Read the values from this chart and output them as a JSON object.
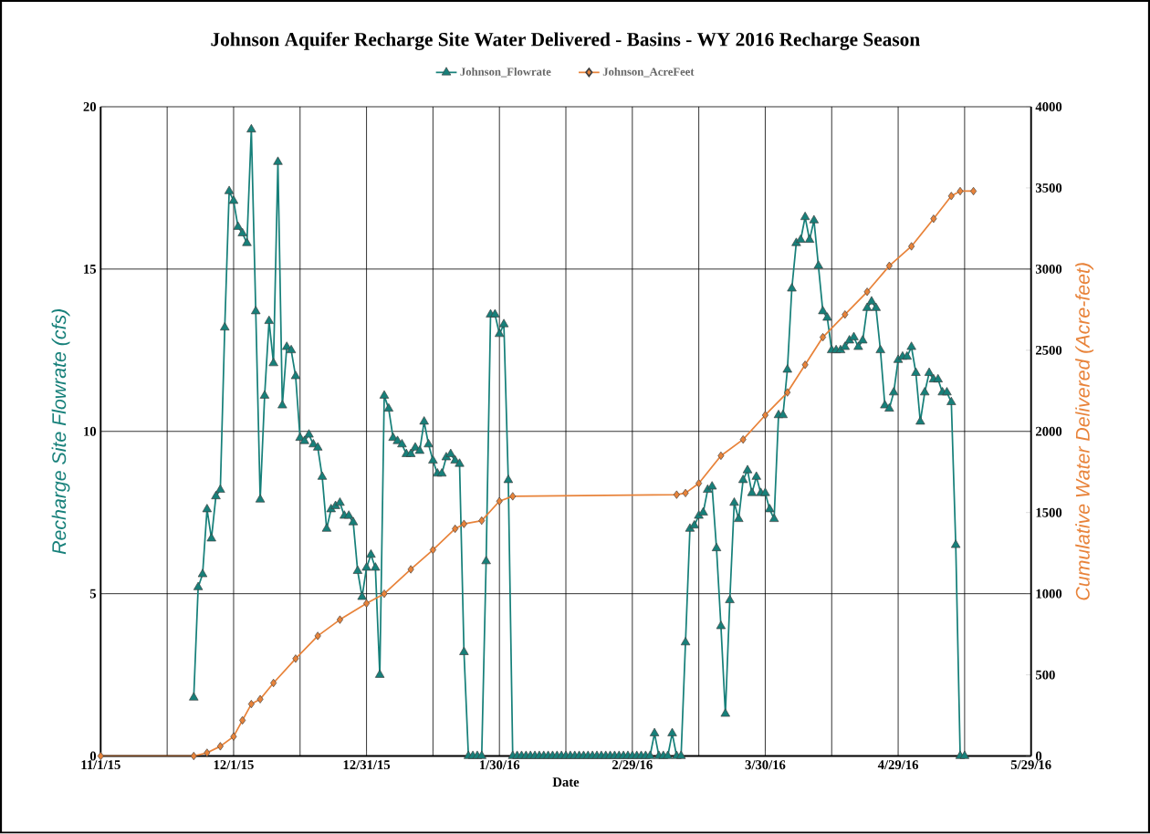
{
  "chart_data": {
    "type": "line",
    "title": "Johnson Aquifer Recharge Site Water Delivered - Basins - WY 2016 Recharge Season",
    "xlabel": "Date",
    "ylabel": "Recharge Site Flowrate (cfs)",
    "y2label": "Cumulative Water Delivered (Acre-feet)",
    "xlim": [
      "2015-11-01",
      "2016-05-29"
    ],
    "xticks": [
      {
        "value": "2015-11-01",
        "label": "11/1/15"
      },
      {
        "value": "2015-11-16",
        "label": null
      },
      {
        "value": "2015-12-01",
        "label": "12/1/15"
      },
      {
        "value": "2015-12-16",
        "label": null
      },
      {
        "value": "2015-12-31",
        "label": "12/31/15"
      },
      {
        "value": "2016-01-15",
        "label": null
      },
      {
        "value": "2016-01-30",
        "label": "1/30/16"
      },
      {
        "value": "2016-02-14",
        "label": null
      },
      {
        "value": "2016-02-29",
        "label": "2/29/16"
      },
      {
        "value": "2016-03-15",
        "label": null
      },
      {
        "value": "2016-03-30",
        "label": "3/30/16"
      },
      {
        "value": "2016-04-14",
        "label": null
      },
      {
        "value": "2016-04-29",
        "label": "4/29/16"
      },
      {
        "value": "2016-05-14",
        "label": null
      },
      {
        "value": "2016-05-29",
        "label": "5/29/16"
      }
    ],
    "ylim": [
      0,
      20
    ],
    "yticks": [
      0,
      5,
      10,
      15,
      20
    ],
    "y2lim": [
      0,
      4000
    ],
    "y2ticks": [
      0,
      500,
      1000,
      1500,
      2000,
      2500,
      3000,
      3500,
      4000
    ],
    "grid": true,
    "legend": "top",
    "series": [
      {
        "name": "Johnson_Flowrate",
        "color": "#17807a",
        "marker": "triangle",
        "x": [
          "2015-11-22",
          "2015-11-23",
          "2015-11-24",
          "2015-11-25",
          "2015-11-26",
          "2015-11-27",
          "2015-11-28",
          "2015-11-29",
          "2015-11-30",
          "2015-12-01",
          "2015-12-02",
          "2015-12-03",
          "2015-12-04",
          "2015-12-05",
          "2015-12-06",
          "2015-12-07",
          "2015-12-08",
          "2015-12-09",
          "2015-12-10",
          "2015-12-11",
          "2015-12-12",
          "2015-12-13",
          "2015-12-14",
          "2015-12-15",
          "2015-12-16",
          "2015-12-17",
          "2015-12-18",
          "2015-12-19",
          "2015-12-20",
          "2015-12-21",
          "2015-12-22",
          "2015-12-23",
          "2015-12-24",
          "2015-12-25",
          "2015-12-26",
          "2015-12-27",
          "2015-12-28",
          "2015-12-29",
          "2015-12-30",
          "2015-12-31",
          "2016-01-01",
          "2016-01-02",
          "2016-01-03",
          "2016-01-04",
          "2016-01-05",
          "2016-01-06",
          "2016-01-07",
          "2016-01-08",
          "2016-01-09",
          "2016-01-10",
          "2016-01-11",
          "2016-01-12",
          "2016-01-13",
          "2016-01-14",
          "2016-01-15",
          "2016-01-16",
          "2016-01-17",
          "2016-01-18",
          "2016-01-19",
          "2016-01-20",
          "2016-01-21",
          "2016-01-22",
          "2016-01-23",
          "2016-01-24",
          "2016-01-25",
          "2016-01-26",
          "2016-01-27",
          "2016-01-28",
          "2016-01-29",
          "2016-01-30",
          "2016-01-31",
          "2016-02-01",
          "2016-02-02",
          "2016-02-03",
          "2016-02-04",
          "2016-02-05",
          "2016-02-06",
          "2016-02-07",
          "2016-02-08",
          "2016-02-09",
          "2016-02-10",
          "2016-02-11",
          "2016-02-12",
          "2016-02-13",
          "2016-02-14",
          "2016-02-15",
          "2016-02-16",
          "2016-02-17",
          "2016-02-18",
          "2016-02-19",
          "2016-02-20",
          "2016-02-21",
          "2016-02-22",
          "2016-02-23",
          "2016-02-24",
          "2016-02-25",
          "2016-02-26",
          "2016-02-27",
          "2016-02-28",
          "2016-02-29",
          "2016-03-01",
          "2016-03-02",
          "2016-03-03",
          "2016-03-04",
          "2016-03-05",
          "2016-03-06",
          "2016-03-07",
          "2016-03-08",
          "2016-03-09",
          "2016-03-10",
          "2016-03-11",
          "2016-03-12",
          "2016-03-13",
          "2016-03-14",
          "2016-03-15",
          "2016-03-16",
          "2016-03-17",
          "2016-03-18",
          "2016-03-19",
          "2016-03-20",
          "2016-03-21",
          "2016-03-22",
          "2016-03-23",
          "2016-03-24",
          "2016-03-25",
          "2016-03-26",
          "2016-03-27",
          "2016-03-28",
          "2016-03-29",
          "2016-03-30",
          "2016-03-31",
          "2016-04-01",
          "2016-04-02",
          "2016-04-03",
          "2016-04-04",
          "2016-04-05",
          "2016-04-06",
          "2016-04-07",
          "2016-04-08",
          "2016-04-09",
          "2016-04-10",
          "2016-04-11",
          "2016-04-12",
          "2016-04-13",
          "2016-04-14",
          "2016-04-15",
          "2016-04-16",
          "2016-04-17",
          "2016-04-18",
          "2016-04-19",
          "2016-04-20",
          "2016-04-21",
          "2016-04-22",
          "2016-04-23",
          "2016-04-24",
          "2016-04-25",
          "2016-04-26",
          "2016-04-27",
          "2016-04-28",
          "2016-04-29",
          "2016-04-30",
          "2016-05-01",
          "2016-05-02",
          "2016-05-03",
          "2016-05-04",
          "2016-05-05",
          "2016-05-06",
          "2016-05-07",
          "2016-05-08",
          "2016-05-09",
          "2016-05-10",
          "2016-05-11",
          "2016-05-12",
          "2016-05-13",
          "2016-05-14"
        ],
        "values": [
          1.8,
          5.2,
          5.6,
          7.6,
          6.7,
          8.0,
          8.2,
          13.2,
          17.4,
          17.1,
          16.3,
          16.1,
          15.8,
          19.3,
          13.7,
          7.9,
          11.1,
          13.4,
          12.1,
          18.3,
          10.8,
          12.6,
          12.5,
          11.7,
          9.8,
          9.7,
          9.9,
          9.6,
          9.5,
          8.6,
          7.0,
          7.6,
          7.7,
          7.8,
          7.4,
          7.4,
          7.2,
          5.7,
          4.9,
          5.8,
          6.2,
          5.8,
          2.5,
          11.1,
          10.7,
          9.8,
          9.7,
          9.6,
          9.3,
          9.3,
          9.5,
          9.4,
          10.3,
          9.6,
          9.1,
          8.7,
          8.7,
          9.2,
          9.3,
          9.1,
          9.0,
          3.2,
          0,
          0,
          0,
          0,
          6.0,
          13.6,
          13.6,
          13.0,
          13.3,
          8.5,
          0,
          0,
          0,
          0,
          0,
          0,
          0,
          0,
          0,
          0,
          0,
          0,
          0,
          0,
          0,
          0,
          0,
          0,
          0,
          0,
          0,
          0,
          0,
          0,
          0,
          0,
          0,
          0,
          0,
          0,
          0,
          0,
          0.7,
          0,
          0,
          0,
          0.7,
          0,
          0,
          3.5,
          7.0,
          7.1,
          7.4,
          7.5,
          8.2,
          8.3,
          6.4,
          4.0,
          1.3,
          4.8,
          7.8,
          7.3,
          8.5,
          8.8,
          8.1,
          8.6,
          8.1,
          8.1,
          7.6,
          7.3,
          10.5,
          10.5,
          11.9,
          14.4,
          15.8,
          15.9,
          16.6,
          15.9,
          16.5,
          15.1,
          13.7,
          13.5,
          12.5,
          12.5,
          12.5,
          12.6,
          12.8,
          12.9,
          12.6,
          12.8,
          13.8,
          14.0,
          13.8,
          12.5,
          10.8,
          10.7,
          11.2,
          12.2,
          12.3,
          12.3,
          12.6,
          11.8,
          10.3,
          11.2,
          11.8,
          11.6,
          11.6,
          11.2,
          11.2,
          10.9,
          6.5,
          0,
          0
        ]
      },
      {
        "name": "Johnson_AcreFeet",
        "color": "#e8833a",
        "marker": "diamond",
        "axis": "y2",
        "x": [
          "2015-11-01",
          "2015-11-22",
          "2015-11-25",
          "2015-11-28",
          "2015-12-01",
          "2015-12-03",
          "2015-12-05",
          "2015-12-07",
          "2015-12-10",
          "2015-12-15",
          "2015-12-20",
          "2015-12-25",
          "2015-12-31",
          "2016-01-04",
          "2016-01-10",
          "2016-01-15",
          "2016-01-20",
          "2016-01-22",
          "2016-01-26",
          "2016-01-30",
          "2016-02-02",
          "2016-03-10",
          "2016-03-12",
          "2016-03-15",
          "2016-03-20",
          "2016-03-25",
          "2016-03-30",
          "2016-04-04",
          "2016-04-08",
          "2016-04-12",
          "2016-04-17",
          "2016-04-22",
          "2016-04-27",
          "2016-05-02",
          "2016-05-07",
          "2016-05-11",
          "2016-05-13",
          "2016-05-16"
        ],
        "values": [
          0,
          0,
          20,
          60,
          120,
          220,
          320,
          350,
          450,
          600,
          740,
          840,
          940,
          1000,
          1150,
          1270,
          1400,
          1430,
          1450,
          1570,
          1600,
          1610,
          1620,
          1680,
          1850,
          1950,
          2100,
          2240,
          2410,
          2580,
          2720,
          2860,
          3020,
          3140,
          3310,
          3450,
          3480,
          3480
        ]
      }
    ]
  }
}
